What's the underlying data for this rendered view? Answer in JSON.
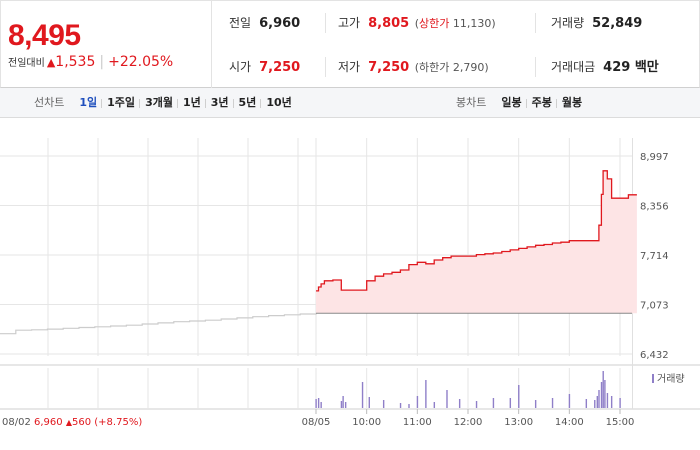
{
  "summary": {
    "price": "8,495",
    "change_label": "전일대비",
    "change_arrow": "▲",
    "change_amount": "1,535",
    "change_rate": "+22.05%",
    "cells": {
      "prev": {
        "label": "전일",
        "value": "6,960"
      },
      "high": {
        "label": "고가",
        "value": "8,805",
        "limit_label": "상한가",
        "limit_value": "11,130"
      },
      "volume": {
        "label": "거래량",
        "value": "52,849"
      },
      "open": {
        "label": "시가",
        "value": "7,250"
      },
      "low": {
        "label": "저가",
        "value": "7,250",
        "limit_label": "하한가",
        "limit_value": "2,790"
      },
      "amount": {
        "label": "거래대금",
        "value": "429 백만"
      }
    }
  },
  "toolbar": {
    "line_title": "선차트",
    "line_items": [
      "1일",
      "1주일",
      "3개월",
      "1년",
      "3년",
      "5년",
      "10년"
    ],
    "line_active": "1일",
    "candle_title": "봉차트",
    "candle_items": [
      "일봉",
      "주봉",
      "월봉"
    ]
  },
  "colors": {
    "up": "#e0181e",
    "area": "#fde4e5",
    "prev_line": "#cccccc",
    "volume": "#8f7fc8",
    "grid": "#e6e6e6",
    "active_tab": "#1f4fbd"
  },
  "chart_data": {
    "type": "line",
    "y_ticks": [
      "8,997",
      "8,356",
      "7,714",
      "7,073",
      "6,432"
    ],
    "ylim": [
      6432,
      8997
    ],
    "x_labels": [
      "08/05",
      "10:00",
      "11:00",
      "12:00",
      "13:00",
      "14:00",
      "15:00"
    ],
    "prev_day": {
      "label": "08/02",
      "close": "6,960",
      "arrow": "▲",
      "change": "560",
      "rate": "(+8.75%)"
    },
    "prev_series": {
      "x": [
        0.0,
        0.6,
        1.2,
        1.8,
        2.4,
        3.0,
        3.6,
        4.2,
        4.8,
        5.4,
        6.0,
        6.6,
        7.2,
        7.8,
        8.4,
        9.0,
        9.6,
        10.2,
        10.8,
        11.4,
        12.0
      ],
      "y": [
        6695,
        6740,
        6745,
        6755,
        6765,
        6775,
        6785,
        6795,
        6805,
        6820,
        6835,
        6850,
        6860,
        6870,
        6885,
        6900,
        6915,
        6930,
        6940,
        6950,
        6960
      ]
    },
    "series": [
      {
        "x": [
          "09:00",
          "09:03",
          "09:06",
          "09:10",
          "09:20",
          "09:30",
          "09:45",
          "09:55",
          "10:00",
          "10:10",
          "10:20",
          "10:30",
          "10:40",
          "10:50",
          "11:00",
          "11:10",
          "11:20",
          "11:30",
          "11:40",
          "11:50",
          "12:00",
          "12:10",
          "12:20",
          "12:30",
          "12:40",
          "12:50",
          "13:00",
          "13:10",
          "13:20",
          "13:30",
          "13:40",
          "13:50",
          "14:00",
          "14:10",
          "14:20",
          "14:25",
          "14:30",
          "14:33",
          "14:35",
          "14:38",
          "14:40",
          "14:45",
          "14:50",
          "15:00",
          "15:10",
          "15:20"
        ],
        "y": [
          7250,
          7300,
          7340,
          7380,
          7390,
          7260,
          7260,
          7260,
          7380,
          7440,
          7470,
          7490,
          7520,
          7590,
          7620,
          7600,
          7650,
          7680,
          7700,
          7700,
          7700,
          7720,
          7730,
          7740,
          7760,
          7780,
          7800,
          7820,
          7840,
          7850,
          7870,
          7880,
          7900,
          7900,
          7900,
          7900,
          7900,
          7900,
          8100,
          8500,
          8805,
          8700,
          8450,
          8450,
          8495,
          8495
        ]
      }
    ],
    "volume_legend": "거래량",
    "volume": {
      "x": [
        "09:00",
        "09:03",
        "09:06",
        "09:30",
        "09:32",
        "09:35",
        "09:55",
        "10:03",
        "10:20",
        "10:40",
        "10:50",
        "11:00",
        "11:10",
        "11:20",
        "11:35",
        "11:50",
        "12:10",
        "12:30",
        "12:50",
        "13:00",
        "13:20",
        "13:40",
        "14:00",
        "14:20",
        "14:30",
        "14:33",
        "14:35",
        "14:38",
        "14:40",
        "14:42",
        "14:45",
        "14:50",
        "15:00"
      ],
      "v": [
        9,
        10,
        6,
        7,
        12,
        6,
        26,
        11,
        8,
        5,
        4,
        12,
        28,
        6,
        18,
        9,
        7,
        10,
        10,
        23,
        8,
        10,
        14,
        9,
        8,
        12,
        18,
        26,
        37,
        28,
        15,
        12,
        10
      ]
    }
  }
}
